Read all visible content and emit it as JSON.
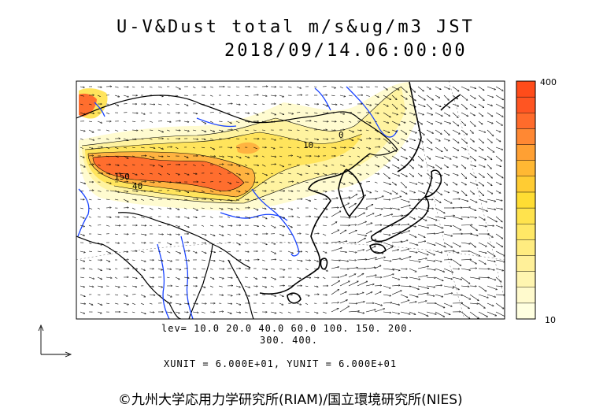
{
  "title": {
    "line1": "U-V&Dust total m/s&ug/m3 JST",
    "line2": "2018/09/14.06:00:00"
  },
  "contour_labels": [
    "150",
    "40",
    "10",
    "0"
  ],
  "levels_line1": "lev= 10.0 20.0 40.0 60.0 100. 150. 200.",
  "levels_line2": "300. 400.",
  "units": "XUNIT = 6.000E+01, YUNIT = 6.000E+01",
  "colorbar": {
    "max_label": "400",
    "min_label": "10",
    "colors": [
      "#ffffe0",
      "#fffacd",
      "#fff5b0",
      "#fff099",
      "#ffec80",
      "#ffe866",
      "#ffe34d",
      "#ffdd33",
      "#ffcc33",
      "#ffb833",
      "#ffa033",
      "#ff8833",
      "#ff6b2b",
      "#ff5522",
      "#ff4c1a"
    ]
  },
  "copyright": "©九州大学応用力学研究所(RIAM)/国立環境研究所(NIES)",
  "icons": {
    "axis_reference": "unit-vector-axes-icon"
  }
}
